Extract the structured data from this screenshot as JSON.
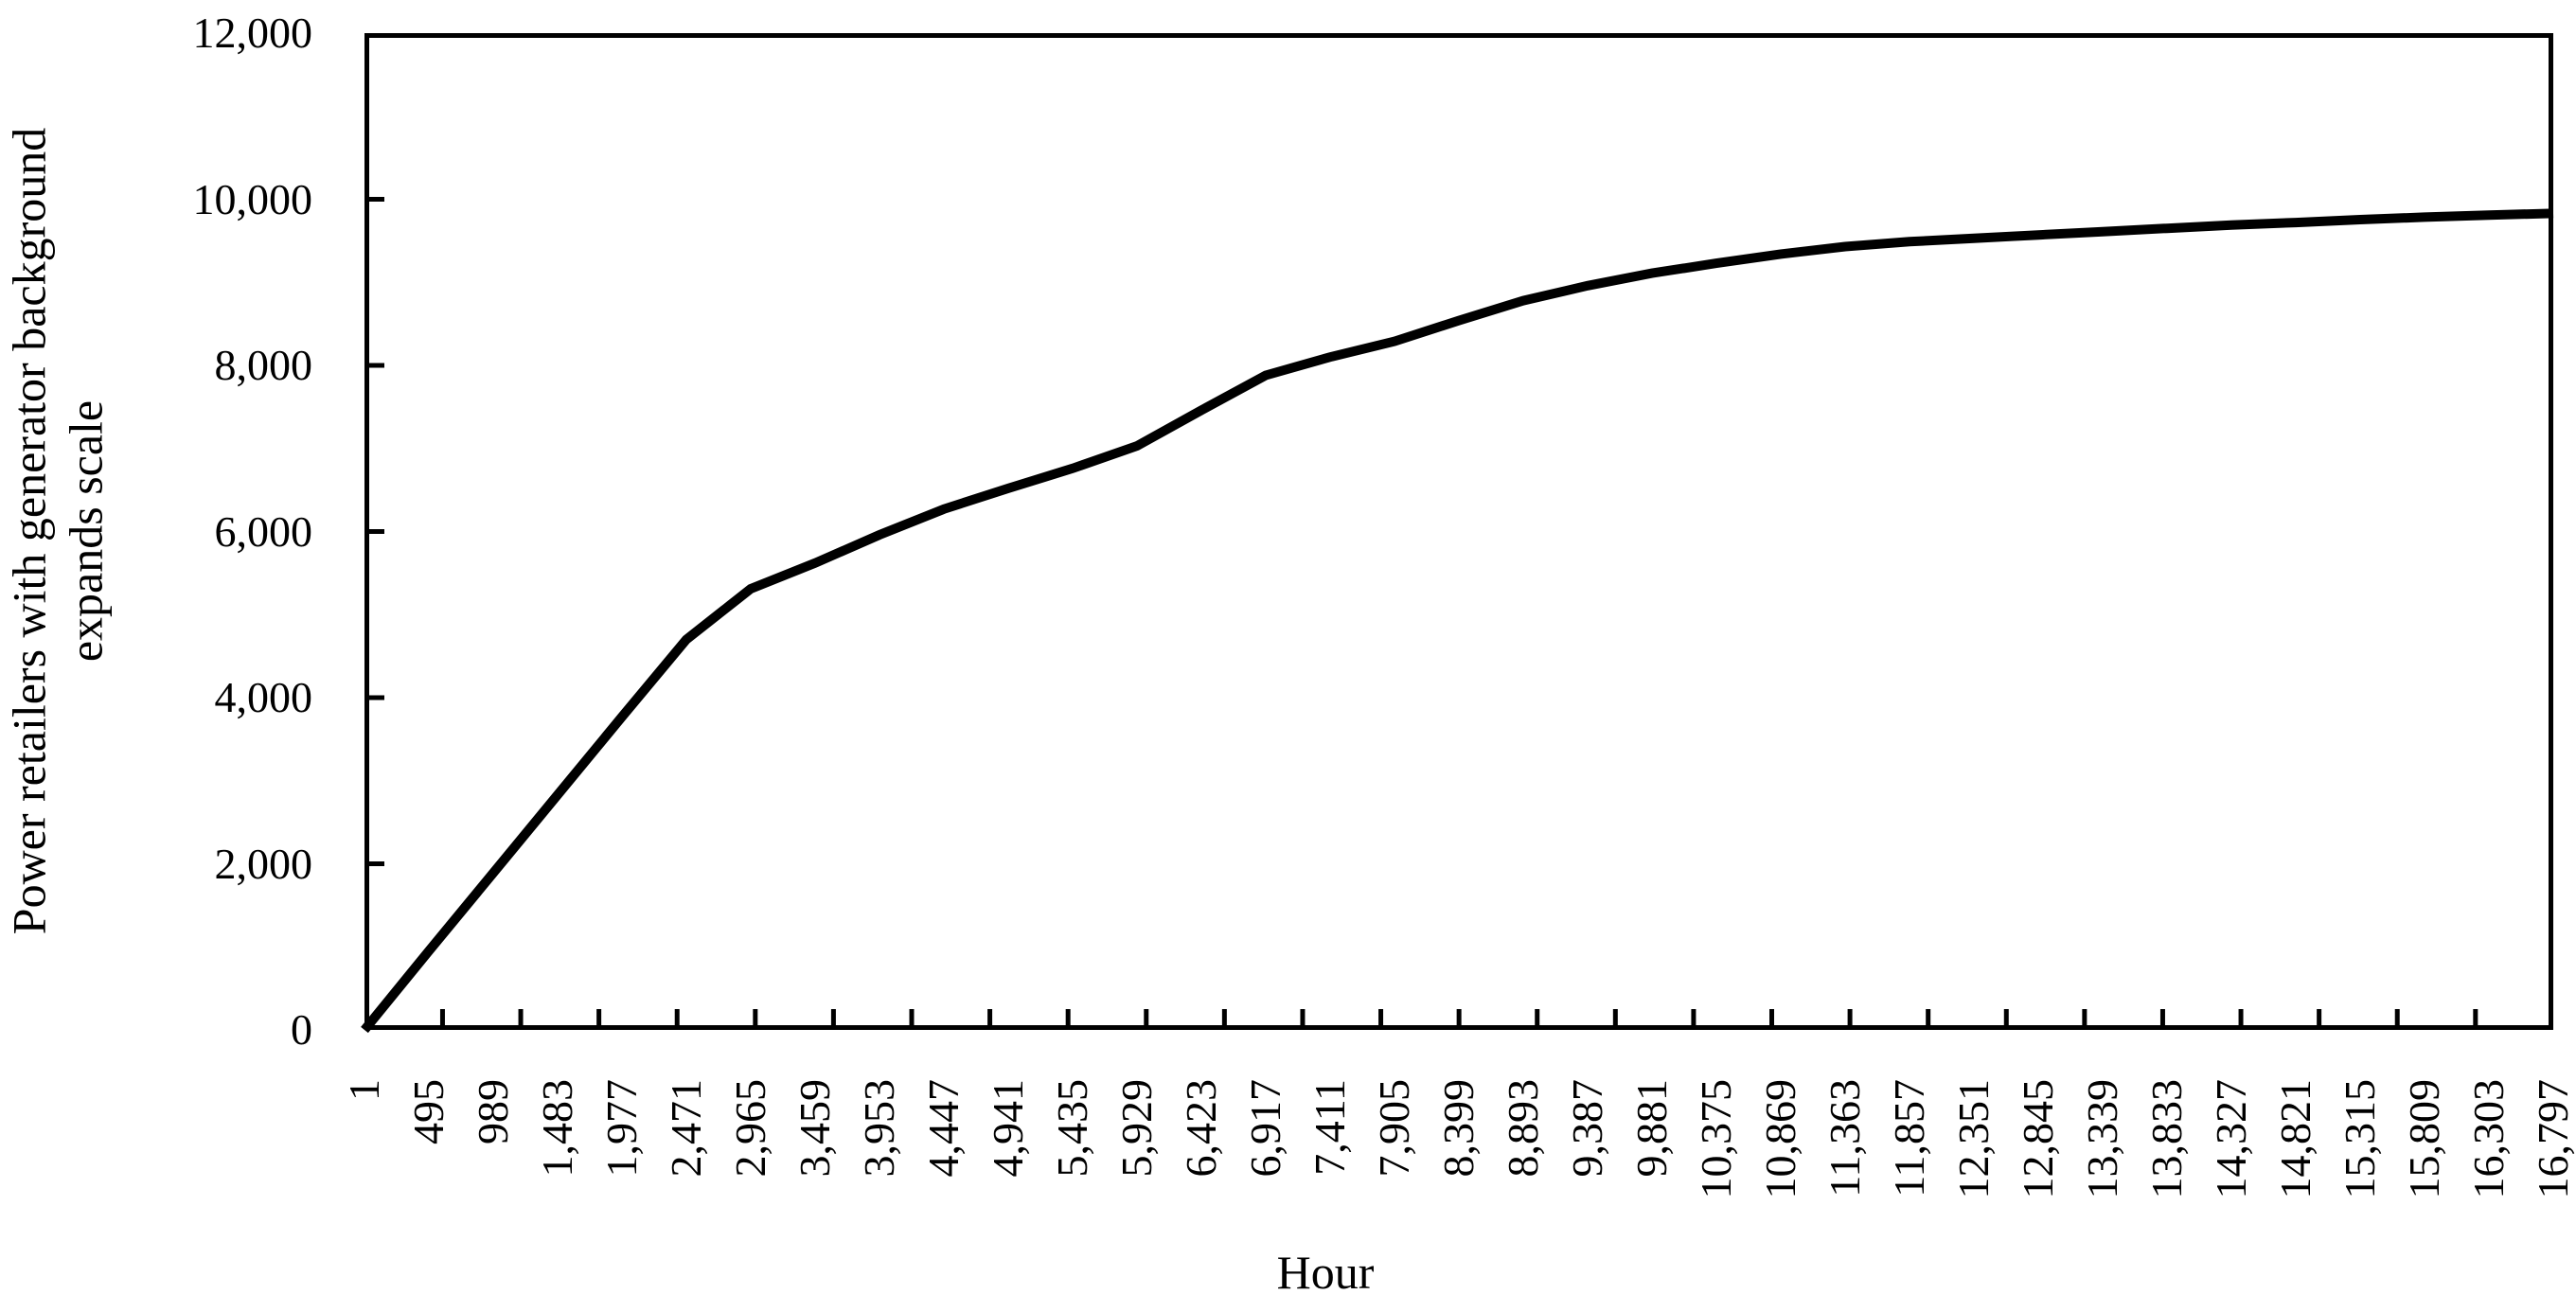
{
  "figure": {
    "background_color": "#ffffff",
    "line_color": "#000000",
    "text_color": "#000000"
  },
  "chart_data": {
    "type": "line",
    "title": "",
    "xlabel": "Hour",
    "ylabel": "Power retailers with generator background expands scale",
    "ylabel_lines": [
      "Power retailers with generator background",
      "expands scale"
    ],
    "x": [
      1,
      495,
      989,
      1483,
      1977,
      2471,
      2965,
      3459,
      3953,
      4447,
      4941,
      5435,
      5929,
      6423,
      6917,
      7411,
      7905,
      8399,
      8893,
      9387,
      9881,
      10375,
      10869,
      11363,
      11857,
      12351,
      12845,
      13339,
      13833,
      14327,
      14821,
      15315,
      15809,
      16303,
      16797
    ],
    "values": [
      0,
      950,
      1890,
      2830,
      3770,
      4700,
      5310,
      5620,
      5960,
      6270,
      6520,
      6760,
      7030,
      7460,
      7880,
      8100,
      8290,
      8540,
      8780,
      8960,
      9110,
      9230,
      9340,
      9430,
      9490,
      9530,
      9570,
      9610,
      9650,
      9690,
      9720,
      9755,
      9785,
      9810,
      9830
    ],
    "x_tick_labels": [
      "1",
      "495",
      "989",
      "1,483",
      "1,977",
      "2,471",
      "2,965",
      "3,459",
      "3,953",
      "4,447",
      "4,941",
      "5,435",
      "5,929",
      "6,423",
      "6,917",
      "7,411",
      "7,905",
      "8,399",
      "8,893",
      "9,387",
      "9,881",
      "10,375",
      "10,869",
      "11,363",
      "11,857",
      "12,351",
      "12,845",
      "13,339",
      "13,833",
      "14,327",
      "14,821",
      "15,315",
      "15,809",
      "16,303",
      "16,797"
    ],
    "y_ticks": [
      0,
      2000,
      4000,
      6000,
      8000,
      10000,
      12000
    ],
    "y_tick_labels": [
      "0",
      "2,000",
      "4,000",
      "6,000",
      "8,000",
      "10,000",
      "12,000"
    ],
    "xlim": [
      1,
      16797
    ],
    "ylim": [
      0,
      12000
    ],
    "grid": false,
    "legend": "none",
    "frame": "box",
    "ticks_direction": "inside",
    "x_minor_tick_interval": 600,
    "series_color": "#000000",
    "series_stroke_width": 10
  }
}
